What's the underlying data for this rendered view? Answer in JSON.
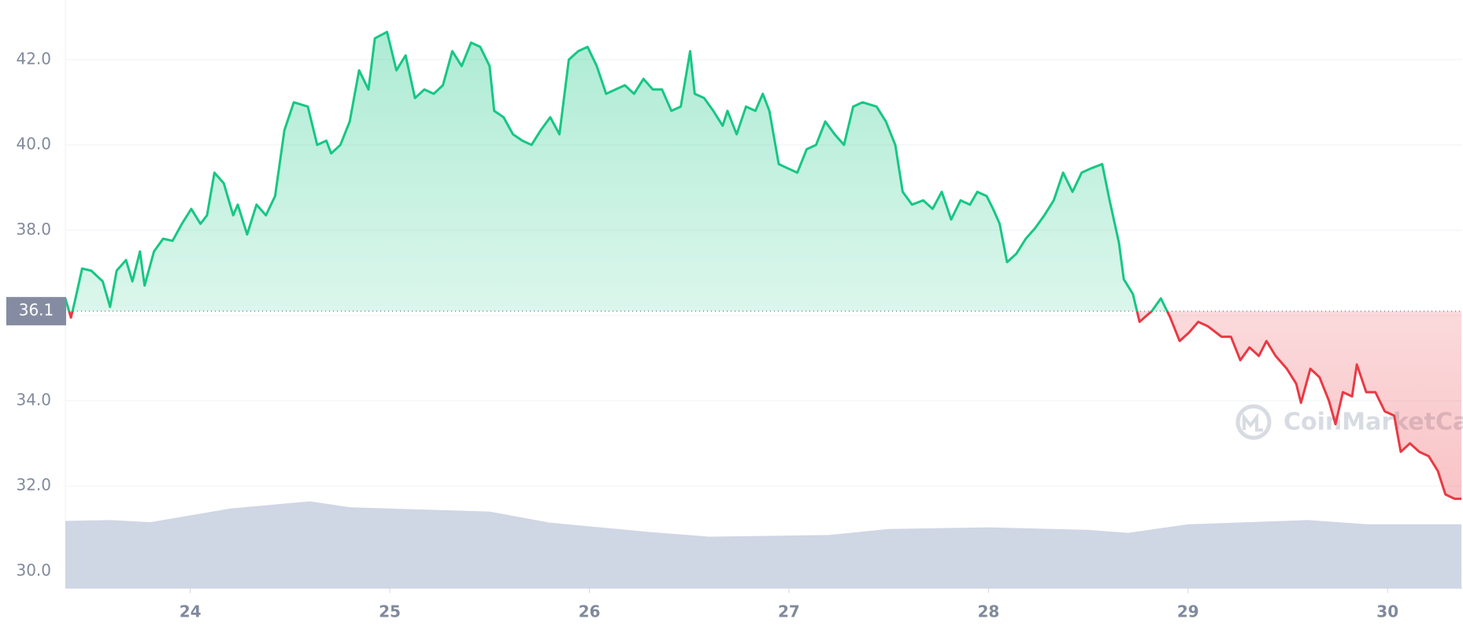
{
  "chart_data": {
    "type": "line",
    "x": [
      23.374,
      23.402,
      23.42,
      23.458,
      23.504,
      23.561,
      23.598,
      23.631,
      23.678,
      23.71,
      23.748,
      23.771,
      23.818,
      23.864,
      23.911,
      23.958,
      24.005,
      24.051,
      24.084,
      24.121,
      24.168,
      24.215,
      24.238,
      24.285,
      24.332,
      24.379,
      24.425,
      24.472,
      24.519,
      24.589,
      24.636,
      24.682,
      24.706,
      24.752,
      24.799,
      24.846,
      24.893,
      24.925,
      24.986,
      25.033,
      25.079,
      25.126,
      25.173,
      25.22,
      25.266,
      25.313,
      25.36,
      25.407,
      25.453,
      25.5,
      25.523,
      25.57,
      25.617,
      25.664,
      25.71,
      25.757,
      25.804,
      25.85,
      25.897,
      25.944,
      25.991,
      26.037,
      26.084,
      26.131,
      26.178,
      26.224,
      26.271,
      26.318,
      26.364,
      26.411,
      26.458,
      26.505,
      26.528,
      26.575,
      26.621,
      26.668,
      26.692,
      26.738,
      26.785,
      26.832,
      26.869,
      26.902,
      26.949,
      26.995,
      27.042,
      27.089,
      27.136,
      27.182,
      27.229,
      27.276,
      27.322,
      27.369,
      27.439,
      27.486,
      27.533,
      27.57,
      27.617,
      27.673,
      27.72,
      27.766,
      27.813,
      27.86,
      27.907,
      27.944,
      27.991,
      28.023,
      28.056,
      28.093,
      28.14,
      28.187,
      28.234,
      28.28,
      28.327,
      28.374,
      28.421,
      28.467,
      28.514,
      28.57,
      28.607,
      28.654,
      28.678,
      28.724,
      28.757,
      28.818,
      28.864,
      28.911,
      28.958,
      29.005,
      29.051,
      29.098,
      29.168,
      29.215,
      29.262,
      29.308,
      29.355,
      29.393,
      29.439,
      29.495,
      29.542,
      29.566,
      29.613,
      29.659,
      29.706,
      29.739,
      29.776,
      29.822,
      29.846,
      29.893,
      29.939,
      29.986,
      30.033,
      30.066,
      30.112,
      30.159,
      30.206,
      30.252,
      30.29,
      30.336,
      30.37
    ],
    "values": [
      36.4,
      35.95,
      36.3,
      37.1,
      37.05,
      36.8,
      36.2,
      37.05,
      37.3,
      36.8,
      37.5,
      36.7,
      37.5,
      37.8,
      37.75,
      38.15,
      38.5,
      38.15,
      38.35,
      39.35,
      39.1,
      38.35,
      38.6,
      37.9,
      38.6,
      38.35,
      38.8,
      40.35,
      41.0,
      40.9,
      40.0,
      40.1,
      39.8,
      40.0,
      40.55,
      41.75,
      41.3,
      42.5,
      42.65,
      41.75,
      42.1,
      41.1,
      41.3,
      41.2,
      41.4,
      42.2,
      41.85,
      42.4,
      42.3,
      41.85,
      40.8,
      40.65,
      40.25,
      40.1,
      40.0,
      40.35,
      40.65,
      40.25,
      42.0,
      42.2,
      42.3,
      41.85,
      41.2,
      41.3,
      41.4,
      41.2,
      41.55,
      41.3,
      41.3,
      40.8,
      40.9,
      42.2,
      41.2,
      41.1,
      40.8,
      40.45,
      40.8,
      40.25,
      40.9,
      40.8,
      41.2,
      40.8,
      39.55,
      39.45,
      39.35,
      39.9,
      40.0,
      40.55,
      40.25,
      40.0,
      40.9,
      41.0,
      40.9,
      40.55,
      40.0,
      38.9,
      38.6,
      38.7,
      38.5,
      38.9,
      38.25,
      38.7,
      38.6,
      38.9,
      38.8,
      38.5,
      38.15,
      37.25,
      37.45,
      37.8,
      38.05,
      38.35,
      38.7,
      39.35,
      38.9,
      39.35,
      39.45,
      39.55,
      38.7,
      37.7,
      36.85,
      36.5,
      35.85,
      36.1,
      36.4,
      35.95,
      35.4,
      35.6,
      35.85,
      35.75,
      35.5,
      35.5,
      34.95,
      35.25,
      35.05,
      35.4,
      35.05,
      34.75,
      34.4,
      33.95,
      34.75,
      34.55,
      34.0,
      33.45,
      34.2,
      34.1,
      34.85,
      34.2,
      34.2,
      33.75,
      33.65,
      32.8,
      33.0,
      32.8,
      32.7,
      32.35,
      31.8,
      31.7,
      31.7
    ],
    "up_color": "#16c784",
    "down_color": "#ea3943",
    "baseline": 36.1,
    "volume": {
      "color": "#cfd6e4",
      "x": [
        23.374,
        23.6,
        23.8,
        24.2,
        24.6,
        24.8,
        25.0,
        25.5,
        25.8,
        26.3,
        26.6,
        27.2,
        27.5,
        28.0,
        28.5,
        28.7,
        29.0,
        29.6,
        29.9,
        30.37
      ],
      "values": [
        31.18,
        31.2,
        31.15,
        31.47,
        31.64,
        31.5,
        31.47,
        31.4,
        31.14,
        30.92,
        30.81,
        30.85,
        30.99,
        31.03,
        30.97,
        30.9,
        31.1,
        31.2,
        31.1,
        31.1
      ]
    },
    "xlim": [
      23.374,
      30.374
    ],
    "xticks": [
      24,
      25,
      26,
      27,
      28,
      29,
      30
    ],
    "ylim": [
      29.6,
      43.4
    ],
    "yticks": [
      {
        "value": 30,
        "label": "30.0"
      },
      {
        "value": 32,
        "label": "32.0"
      },
      {
        "value": 34,
        "label": "34.0"
      },
      {
        "value": 36,
        "label": "36.0"
      },
      {
        "value": 38,
        "label": "38.0"
      },
      {
        "value": 40,
        "label": "40.0"
      },
      {
        "value": 42,
        "label": "42.0"
      }
    ],
    "grid": true,
    "watermark": "CoinMarketCap"
  }
}
